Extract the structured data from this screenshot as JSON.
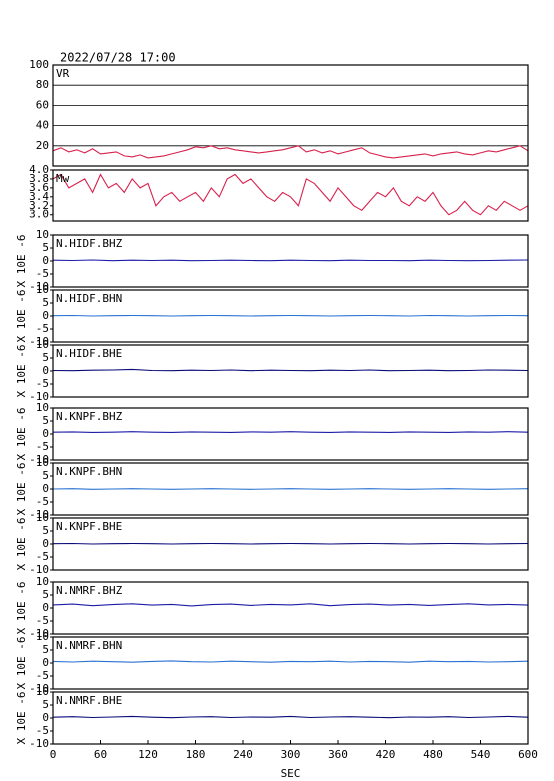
{
  "title": "2022/07/28 17:00",
  "chart_data": [
    {
      "type": "line",
      "xlim": [
        0,
        600
      ],
      "ylim": [
        0,
        100
      ],
      "yticks": [
        20,
        40,
        60,
        80,
        100
      ],
      "grid": true,
      "x": [
        0,
        10,
        20,
        30,
        40,
        50,
        60,
        70,
        80,
        90,
        100,
        110,
        120,
        130,
        140,
        150,
        160,
        170,
        180,
        190,
        200,
        210,
        220,
        230,
        240,
        250,
        260,
        270,
        280,
        290,
        300,
        310,
        320,
        330,
        340,
        350,
        360,
        370,
        380,
        390,
        400,
        410,
        420,
        430,
        440,
        450,
        460,
        470,
        480,
        490,
        500,
        510,
        520,
        530,
        540,
        550,
        560,
        570,
        580,
        590,
        600
      ],
      "series": [
        {
          "name": "VR",
          "color": "#d8204c",
          "values": [
            15,
            18,
            14,
            16,
            13,
            17,
            12,
            13,
            14,
            10,
            9,
            11,
            8,
            9,
            10,
            12,
            14,
            16,
            19,
            18,
            20,
            17,
            18,
            16,
            15,
            14,
            13,
            14,
            15,
            16,
            18,
            20,
            14,
            16,
            13,
            15,
            12,
            14,
            16,
            18,
            13,
            11,
            9,
            8,
            9,
            10,
            11,
            12,
            10,
            12,
            13,
            14,
            12,
            11,
            13,
            15,
            14,
            16,
            18,
            20,
            15
          ]
        }
      ]
    },
    {
      "type": "line",
      "xlim": [
        0,
        600
      ],
      "ylim": [
        2.86,
        4.0
      ],
      "yticks": [
        {
          "value": 3,
          "label": "3.0"
        },
        3.2,
        3.4,
        3.6,
        3.8,
        {
          "value": 4,
          "label": "4.0"
        }
      ],
      "x": [
        0,
        10,
        20,
        30,
        40,
        50,
        60,
        70,
        80,
        90,
        100,
        110,
        120,
        130,
        140,
        150,
        160,
        170,
        180,
        190,
        200,
        210,
        220,
        230,
        240,
        250,
        260,
        270,
        280,
        290,
        300,
        310,
        320,
        330,
        340,
        350,
        360,
        370,
        380,
        390,
        400,
        410,
        420,
        430,
        440,
        450,
        460,
        470,
        480,
        490,
        500,
        510,
        520,
        530,
        540,
        550,
        560,
        570,
        580,
        590,
        600
      ],
      "series": [
        {
          "name": "Mw",
          "color": "#d8204c",
          "values": [
            3.8,
            3.9,
            3.6,
            3.7,
            3.8,
            3.5,
            3.9,
            3.6,
            3.7,
            3.5,
            3.8,
            3.6,
            3.7,
            3.2,
            3.4,
            3.5,
            3.3,
            3.4,
            3.5,
            3.3,
            3.6,
            3.4,
            3.8,
            3.9,
            3.7,
            3.8,
            3.6,
            3.4,
            3.3,
            3.5,
            3.4,
            3.2,
            3.8,
            3.7,
            3.5,
            3.3,
            3.6,
            3.4,
            3.2,
            3.1,
            3.3,
            3.5,
            3.4,
            3.6,
            3.3,
            3.2,
            3.4,
            3.3,
            3.5,
            3.2,
            3.0,
            3.1,
            3.3,
            3.1,
            3.0,
            3.2,
            3.1,
            3.3,
            3.2,
            3.1,
            3.2
          ]
        }
      ]
    },
    {
      "type": "line",
      "xlim": [
        0,
        600
      ],
      "ylim": [
        -10,
        10
      ],
      "yticks": [
        -10,
        -5,
        0,
        5,
        10
      ],
      "ylabel": "X 10E -6",
      "x": [
        0,
        25,
        50,
        75,
        100,
        125,
        150,
        175,
        200,
        225,
        250,
        275,
        300,
        325,
        350,
        375,
        400,
        425,
        450,
        475,
        500,
        525,
        550,
        575,
        600
      ],
      "series": [
        {
          "name": "N.HIDF.BHZ",
          "color": "#1c1ca8",
          "values": [
            0.3,
            0.2,
            0.4,
            0.1,
            0.3,
            0.2,
            0.3,
            0.1,
            0.2,
            0.3,
            0.2,
            0.1,
            0.3,
            0.2,
            0.1,
            0.3,
            0.2,
            0.2,
            0.1,
            0.3,
            0.2,
            0.1,
            0.2,
            0.3,
            0.4
          ]
        }
      ]
    },
    {
      "type": "line",
      "xlim": [
        0,
        600
      ],
      "ylim": [
        -10,
        10
      ],
      "yticks": [
        -10,
        -5,
        0,
        5,
        10
      ],
      "ylabel": "X 10E -6",
      "x": [
        0,
        25,
        50,
        75,
        100,
        125,
        150,
        175,
        200,
        225,
        250,
        275,
        300,
        325,
        350,
        375,
        400,
        425,
        450,
        475,
        500,
        525,
        550,
        575,
        600
      ],
      "series": [
        {
          "name": "N.HIDF.BHN",
          "color": "#2a72d2",
          "values": [
            0.1,
            0.2,
            0.0,
            0.1,
            0.2,
            0.1,
            0.0,
            0.1,
            0.2,
            0.1,
            0.0,
            0.1,
            0.2,
            0.1,
            0.0,
            0.1,
            0.2,
            0.1,
            0.0,
            0.2,
            0.1,
            0.0,
            0.1,
            0.2,
            0.1
          ]
        }
      ]
    },
    {
      "type": "line",
      "xlim": [
        0,
        600
      ],
      "ylim": [
        -10,
        10
      ],
      "yticks": [
        -10,
        -5,
        0,
        5,
        10
      ],
      "ylabel": "X 10E -6",
      "x": [
        0,
        25,
        50,
        75,
        100,
        125,
        150,
        175,
        200,
        225,
        250,
        275,
        300,
        325,
        350,
        375,
        400,
        425,
        450,
        475,
        500,
        525,
        550,
        575,
        600
      ],
      "series": [
        {
          "name": "N.HIDF.BHE",
          "color": "#0a0a78",
          "values": [
            0.2,
            0.1,
            0.3,
            0.4,
            0.6,
            0.2,
            0.1,
            0.3,
            0.2,
            0.4,
            0.1,
            0.3,
            0.2,
            0.1,
            0.3,
            0.2,
            0.4,
            0.1,
            0.2,
            0.3,
            0.1,
            0.2,
            0.4,
            0.3,
            0.2
          ]
        }
      ]
    },
    {
      "type": "line",
      "xlim": [
        0,
        600
      ],
      "ylim": [
        -10,
        10
      ],
      "yticks": [
        -10,
        -5,
        0,
        5,
        10
      ],
      "ylabel": "X 10E -6",
      "x": [
        0,
        25,
        50,
        75,
        100,
        125,
        150,
        175,
        200,
        225,
        250,
        275,
        300,
        325,
        350,
        375,
        400,
        425,
        450,
        475,
        500,
        525,
        550,
        575,
        600
      ],
      "series": [
        {
          "name": "N.KNPF.BHZ",
          "color": "#1c1ca8",
          "values": [
            0.7,
            0.8,
            0.6,
            0.7,
            0.9,
            0.7,
            0.6,
            0.8,
            0.7,
            0.6,
            0.8,
            0.7,
            0.9,
            0.7,
            0.6,
            0.8,
            0.7,
            0.6,
            0.8,
            0.7,
            0.6,
            0.8,
            0.7,
            0.9,
            0.7
          ]
        }
      ]
    },
    {
      "type": "line",
      "xlim": [
        0,
        600
      ],
      "ylim": [
        -10,
        10
      ],
      "yticks": [
        -10,
        -5,
        0,
        5,
        10
      ],
      "ylabel": "X 10E -6",
      "x": [
        0,
        25,
        50,
        75,
        100,
        125,
        150,
        175,
        200,
        225,
        250,
        275,
        300,
        325,
        350,
        375,
        400,
        425,
        450,
        475,
        500,
        525,
        550,
        575,
        600
      ],
      "series": [
        {
          "name": "N.KNPF.BHN",
          "color": "#2a72d2",
          "values": [
            0.0,
            0.1,
            -0.1,
            0.0,
            0.1,
            0.0,
            -0.1,
            0.0,
            0.1,
            0.0,
            -0.1,
            0.0,
            0.1,
            0.0,
            -0.1,
            0.0,
            0.1,
            0.0,
            -0.1,
            0.0,
            0.1,
            0.0,
            -0.1,
            0.0,
            0.1
          ]
        }
      ]
    },
    {
      "type": "line",
      "xlim": [
        0,
        600
      ],
      "ylim": [
        -10,
        10
      ],
      "yticks": [
        -10,
        -5,
        0,
        5,
        10
      ],
      "ylabel": "X 10E -6",
      "x": [
        0,
        25,
        50,
        75,
        100,
        125,
        150,
        175,
        200,
        225,
        250,
        275,
        300,
        325,
        350,
        375,
        400,
        425,
        450,
        475,
        500,
        525,
        550,
        575,
        600
      ],
      "series": [
        {
          "name": "N.KNPF.BHE",
          "color": "#0a0a78",
          "values": [
            0.1,
            0.2,
            0.0,
            0.1,
            0.2,
            0.1,
            0.0,
            0.1,
            0.2,
            0.1,
            0.0,
            0.1,
            0.2,
            0.1,
            0.0,
            0.1,
            0.2,
            0.1,
            0.0,
            0.1,
            0.2,
            0.1,
            0.0,
            0.1,
            0.2
          ]
        }
      ]
    },
    {
      "type": "line",
      "xlim": [
        0,
        600
      ],
      "ylim": [
        -10,
        10
      ],
      "yticks": [
        -10,
        -5,
        0,
        5,
        10
      ],
      "ylabel": "X 10E -6",
      "x": [
        0,
        25,
        50,
        75,
        100,
        125,
        150,
        175,
        200,
        225,
        250,
        275,
        300,
        325,
        350,
        375,
        400,
        425,
        450,
        475,
        500,
        525,
        550,
        575,
        600
      ],
      "series": [
        {
          "name": "N.NMRF.BHZ",
          "color": "#1c1ca8",
          "values": [
            1.2,
            1.5,
            0.9,
            1.3,
            1.6,
            1.1,
            1.4,
            0.8,
            1.3,
            1.5,
            1.0,
            1.4,
            1.2,
            1.6,
            0.9,
            1.3,
            1.5,
            1.1,
            1.4,
            1.0,
            1.3,
            1.6,
            1.2,
            1.4,
            1.1
          ]
        }
      ]
    },
    {
      "type": "line",
      "xlim": [
        0,
        600
      ],
      "ylim": [
        -10,
        10
      ],
      "yticks": [
        -10,
        -5,
        0,
        5,
        10
      ],
      "ylabel": "X 10E -6",
      "x": [
        0,
        25,
        50,
        75,
        100,
        125,
        150,
        175,
        200,
        225,
        250,
        275,
        300,
        325,
        350,
        375,
        400,
        425,
        450,
        475,
        500,
        525,
        550,
        575,
        600
      ],
      "series": [
        {
          "name": "N.NMRF.BHN",
          "color": "#2a72d2",
          "values": [
            0.6,
            0.4,
            0.7,
            0.5,
            0.3,
            0.6,
            0.8,
            0.5,
            0.4,
            0.7,
            0.5,
            0.3,
            0.6,
            0.5,
            0.7,
            0.4,
            0.6,
            0.5,
            0.3,
            0.7,
            0.5,
            0.6,
            0.4,
            0.5,
            0.7
          ]
        }
      ]
    },
    {
      "type": "line",
      "xlim": [
        0,
        600
      ],
      "ylim": [
        -10,
        10
      ],
      "yticks": [
        -10,
        -5,
        0,
        5,
        10
      ],
      "ylabel": "X 10E -6",
      "xticks": [
        0,
        60,
        120,
        180,
        240,
        300,
        360,
        420,
        480,
        540,
        600
      ],
      "xlabel": "SEC",
      "x": [
        0,
        25,
        50,
        75,
        100,
        125,
        150,
        175,
        200,
        225,
        250,
        275,
        300,
        325,
        350,
        375,
        400,
        425,
        450,
        475,
        500,
        525,
        550,
        575,
        600
      ],
      "series": [
        {
          "name": "N.NMRF.BHE",
          "color": "#0a0a78",
          "values": [
            0.3,
            0.5,
            0.2,
            0.4,
            0.6,
            0.3,
            0.1,
            0.4,
            0.5,
            0.2,
            0.4,
            0.3,
            0.6,
            0.2,
            0.4,
            0.5,
            0.3,
            0.1,
            0.4,
            0.3,
            0.5,
            0.2,
            0.4,
            0.6,
            0.3
          ]
        }
      ]
    }
  ]
}
